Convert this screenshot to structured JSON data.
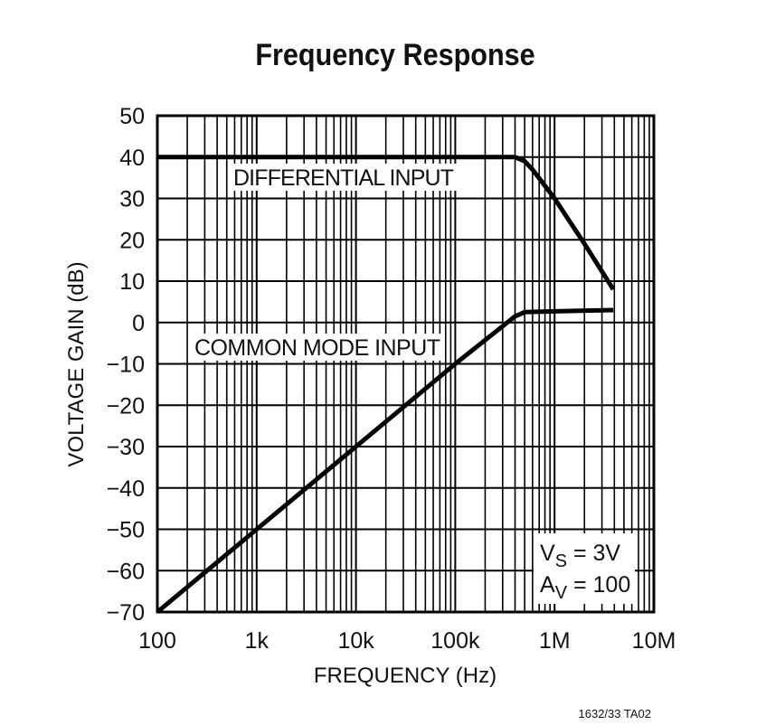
{
  "chart_data": {
    "type": "line",
    "title": "Frequency Response",
    "xlabel": "FREQUENCY (Hz)",
    "ylabel": "VOLTAGE GAIN (dB)",
    "xscale": "log",
    "xlim": [
      100,
      10000000
    ],
    "ylim": [
      -70,
      50
    ],
    "grid": true,
    "x_tick_labels": [
      "100",
      "1k",
      "10k",
      "100k",
      "1M",
      "10M"
    ],
    "x_ticks": [
      100,
      1000,
      10000,
      100000,
      1000000,
      10000000
    ],
    "y_ticks": [
      50,
      40,
      30,
      20,
      10,
      0,
      -10,
      -20,
      -30,
      -40,
      -50,
      -60,
      -70
    ],
    "y_tick_labels": [
      "50",
      "40",
      "30",
      "20",
      "10",
      "0",
      "−10",
      "−20",
      "−30",
      "−40",
      "−50",
      "−60",
      "−70"
    ],
    "series": [
      {
        "name": "DIFFERENTIAL INPUT",
        "x": [
          100,
          400000,
          500000,
          600000,
          1000000,
          2000000,
          3900000
        ],
        "y": [
          40,
          40,
          39,
          37,
          30,
          19,
          8
        ]
      },
      {
        "name": "COMMON MODE INPUT",
        "x": [
          100,
          1000,
          10000,
          100000,
          400000,
          500000,
          1000000,
          3900000
        ],
        "y": [
          -70,
          -50,
          -30,
          -10,
          1.5,
          2.5,
          2.7,
          3
        ]
      }
    ],
    "annotation": {
      "line1_main": "V",
      "line1_sub": "S",
      "line1_rest": " = 3V",
      "line2_main": "A",
      "line2_sub": "V",
      "line2_rest": " = 100"
    },
    "line_color": "#000000"
  },
  "footer": {
    "code": "1632/33 TA02"
  }
}
